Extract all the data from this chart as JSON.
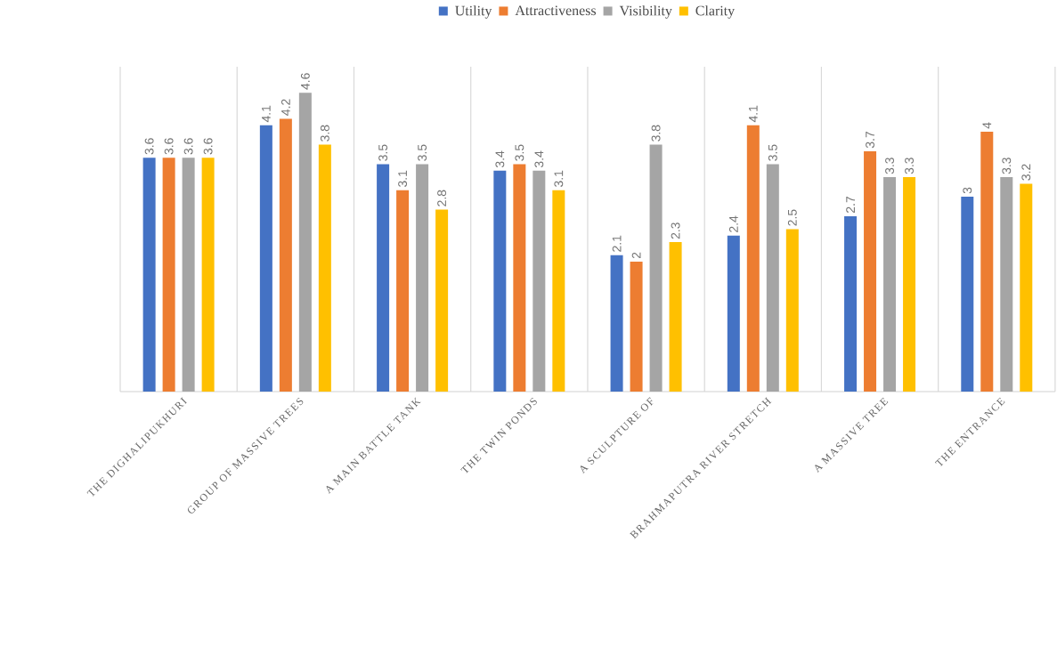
{
  "chart_data": {
    "type": "bar",
    "categories": [
      "THE DIGHALIPUKHURI",
      "GROUP OF MASSIVE TREES",
      "A MAIN BATTLE TANK",
      "THE TWIN PONDS",
      "A SCULPTURE OF",
      "BRAHMAPUTRA RIVER STRETCH",
      "A MASSIVE TREE",
      "THE ENTRANCE"
    ],
    "series": [
      {
        "name": "Utility",
        "color": "#4472c4",
        "values": [
          3.6,
          4.1,
          3.5,
          3.4,
          2.1,
          2.4,
          2.7,
          3
        ]
      },
      {
        "name": "Attractiveness",
        "color": "#ed7d31",
        "values": [
          3.6,
          4.2,
          3.1,
          3.5,
          2,
          4.1,
          3.7,
          4
        ]
      },
      {
        "name": "Visibility",
        "color": "#a5a5a5",
        "values": [
          3.6,
          4.6,
          3.5,
          3.4,
          3.8,
          3.5,
          3.3,
          3.3
        ]
      },
      {
        "name": "Clarity",
        "color": "#ffc000",
        "values": [
          3.6,
          3.8,
          2.8,
          3.1,
          2.3,
          2.5,
          3.3,
          3.2
        ]
      }
    ],
    "ylim": [
      0,
      5
    ],
    "tick_labels": "x",
    "grid": "x",
    "legend": "top",
    "data_labels": true
  }
}
